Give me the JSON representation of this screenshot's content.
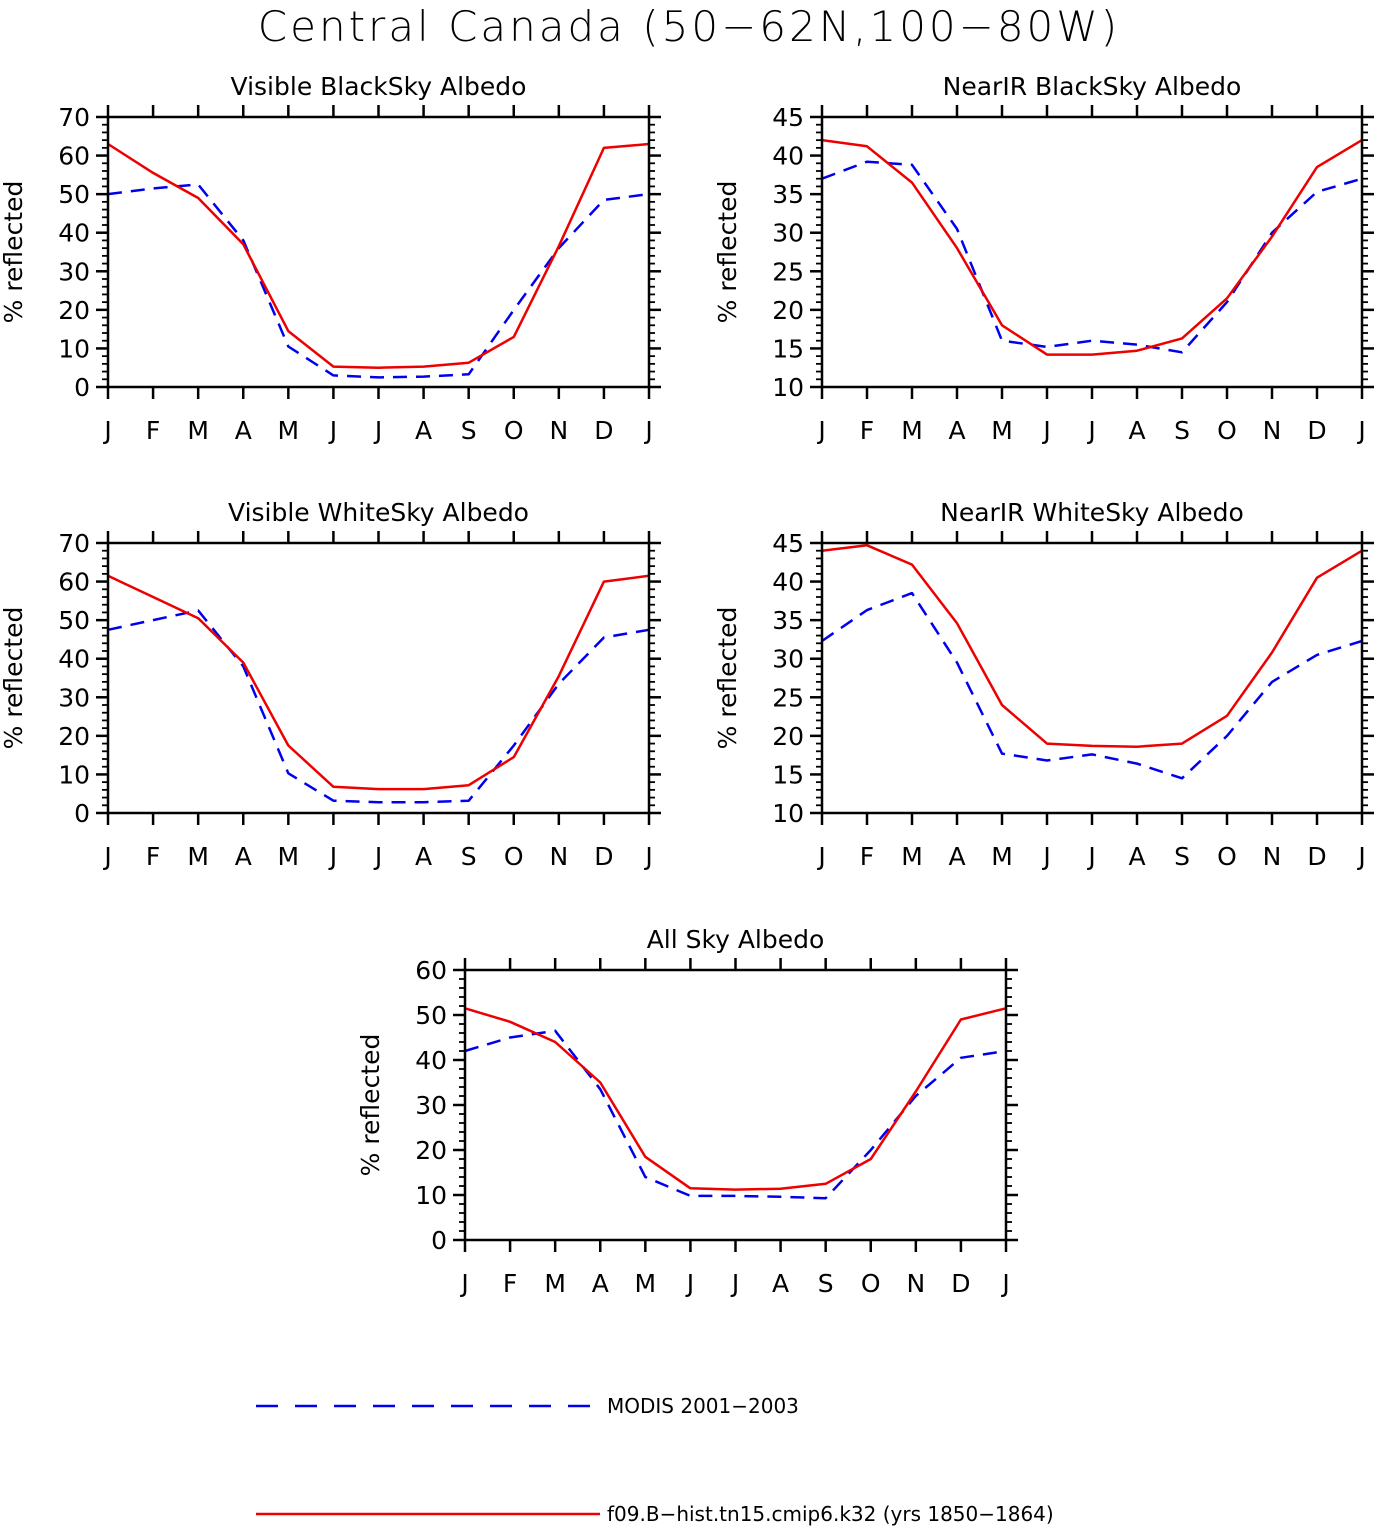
{
  "title": "Central Canada (50−62N,100−80W)",
  "months": [
    "J",
    "F",
    "M",
    "A",
    "M",
    "J",
    "J",
    "A",
    "S",
    "O",
    "N",
    "D",
    "J"
  ],
  "colors": {
    "obs": "#0000ee",
    "model": "#ee0000"
  },
  "legend": [
    {
      "key": "obs",
      "label": "MODIS 2001−2003"
    },
    {
      "key": "model",
      "label": "f09.B−hist.tn15.cmip6.k32 (yrs 1850−1864)"
    }
  ],
  "chart_data": [
    {
      "type": "line",
      "title": "Visible BlackSky Albedo",
      "ylabel": "% reflected",
      "ylim": [
        0,
        70
      ],
      "yticks": [
        0,
        10,
        20,
        30,
        40,
        50,
        60,
        70
      ],
      "categories": [
        "J",
        "F",
        "M",
        "A",
        "M",
        "J",
        "J",
        "A",
        "S",
        "O",
        "N",
        "D",
        "J"
      ],
      "series": [
        {
          "name": "MODIS 2001−2003",
          "key": "obs",
          "values": [
            50,
            51.5,
            52.5,
            38,
            10.5,
            3,
            2.5,
            2.7,
            3.3,
            20,
            36,
            48.5,
            50
          ]
        },
        {
          "name": "f09.B−hist.tn15.cmip6.k32 (yrs 1850−1864)",
          "key": "model",
          "values": [
            63,
            55.5,
            49,
            37,
            14.5,
            5.3,
            5,
            5.3,
            6.3,
            13,
            36.5,
            62,
            63
          ]
        }
      ]
    },
    {
      "type": "line",
      "title": "NearIR BlackSky Albedo",
      "ylabel": "% reflected",
      "ylim": [
        10,
        45
      ],
      "yticks": [
        10,
        15,
        20,
        25,
        30,
        35,
        40,
        45
      ],
      "categories": [
        "J",
        "F",
        "M",
        "A",
        "M",
        "J",
        "J",
        "A",
        "S",
        "O",
        "N",
        "D",
        "J"
      ],
      "series": [
        {
          "name": "MODIS 2001−2003",
          "key": "obs",
          "values": [
            37,
            39.2,
            38.8,
            30.5,
            16,
            15.2,
            16,
            15.5,
            14.5,
            21,
            30,
            35.3,
            37
          ]
        },
        {
          "name": "f09.B−hist.tn15.cmip6.k32 (yrs 1850−1864)",
          "key": "model",
          "values": [
            42,
            41.2,
            36.5,
            28,
            18,
            14.2,
            14.2,
            14.7,
            16.3,
            21.5,
            29.5,
            38.5,
            42
          ]
        }
      ]
    },
    {
      "type": "line",
      "title": "Visible WhiteSky Albedo",
      "ylabel": "% reflected",
      "ylim": [
        0,
        70
      ],
      "yticks": [
        0,
        10,
        20,
        30,
        40,
        50,
        60,
        70
      ],
      "categories": [
        "J",
        "F",
        "M",
        "A",
        "M",
        "J",
        "J",
        "A",
        "S",
        "O",
        "N",
        "D",
        "J"
      ],
      "series": [
        {
          "name": "MODIS 2001−2003",
          "key": "obs",
          "values": [
            47.5,
            50,
            52.5,
            38,
            10.3,
            3.2,
            2.8,
            2.8,
            3.2,
            17.5,
            33.5,
            45.5,
            47.5
          ]
        },
        {
          "name": "f09.B−hist.tn15.cmip6.k32 (yrs 1850−1864)",
          "key": "model",
          "values": [
            61.5,
            56,
            50.5,
            39,
            17.5,
            6.8,
            6.2,
            6.2,
            7.2,
            14.5,
            35.5,
            60,
            61.5
          ]
        }
      ]
    },
    {
      "type": "line",
      "title": "NearIR WhiteSky Albedo",
      "ylabel": "% reflected",
      "ylim": [
        10,
        45
      ],
      "yticks": [
        10,
        15,
        20,
        25,
        30,
        35,
        40,
        45
      ],
      "categories": [
        "J",
        "F",
        "M",
        "A",
        "M",
        "J",
        "J",
        "A",
        "S",
        "O",
        "N",
        "D",
        "J"
      ],
      "series": [
        {
          "name": "MODIS 2001−2003",
          "key": "obs",
          "values": [
            32.3,
            36.3,
            38.5,
            29.5,
            17.7,
            16.8,
            17.6,
            16.4,
            14.5,
            20,
            27,
            30.5,
            32.3
          ]
        },
        {
          "name": "f09.B−hist.tn15.cmip6.k32 (yrs 1850−1864)",
          "key": "model",
          "values": [
            44,
            44.7,
            42.2,
            34.6,
            24,
            19,
            18.7,
            18.6,
            19,
            22.6,
            30.8,
            40.5,
            44
          ]
        }
      ]
    },
    {
      "type": "line",
      "title": "All Sky Albedo",
      "ylabel": "% reflected",
      "ylim": [
        0,
        60
      ],
      "yticks": [
        0,
        10,
        20,
        30,
        40,
        50,
        60
      ],
      "categories": [
        "J",
        "F",
        "M",
        "A",
        "M",
        "J",
        "J",
        "A",
        "S",
        "O",
        "N",
        "D",
        "J"
      ],
      "series": [
        {
          "name": "MODIS 2001−2003",
          "key": "obs",
          "values": [
            42,
            45,
            46.5,
            33.5,
            14,
            9.8,
            9.8,
            9.6,
            9.3,
            20,
            32,
            40.5,
            42
          ]
        },
        {
          "name": "f09.B−hist.tn15.cmip6.k32 (yrs 1850−1864)",
          "key": "model",
          "values": [
            51.5,
            48.5,
            44,
            35,
            18.5,
            11.5,
            11.2,
            11.4,
            12.5,
            18,
            33,
            49,
            51.5
          ]
        }
      ]
    }
  ]
}
